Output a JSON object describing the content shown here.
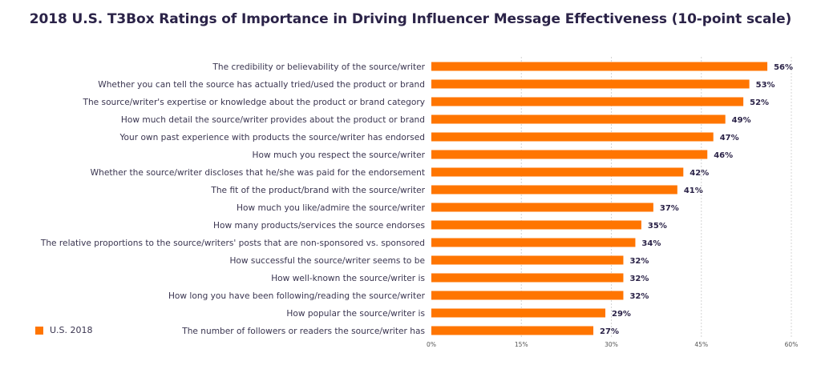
{
  "chart_data": {
    "type": "bar",
    "orientation": "horizontal",
    "title": "2018 U.S. T3Box Ratings of Importance in Driving Influencer Message Effectiveness (10-point scale)",
    "categories": [
      "The credibility or believability of the source/writer",
      "Whether you can tell the source has actually tried/used the product or brand",
      "The source/writer's expertise or knowledge about the product or brand category",
      "How much detail the source/writer provides about the product or brand",
      "Your own past experience with products the source/writer has endorsed",
      "How much you respect the source/writer",
      "Whether the source/writer discloses that he/she was paid for the endorsement",
      "The fit of the product/brand with the source/writer",
      "How much you like/admire the source/writer",
      "How many products/services the source endorses",
      "The relative proportions to the source/writers' posts that are non-sponsored vs. sponsored",
      "How successful the source/writer seems to be",
      "How well-known the source/writer is",
      "How long you have been following/reading the source/writer",
      "How popular the source/writer is",
      "The number of followers or readers the source/writer has"
    ],
    "series": [
      {
        "name": "U.S. 2018",
        "values": [
          56,
          53,
          52,
          49,
          47,
          46,
          42,
          41,
          37,
          35,
          34,
          32,
          32,
          32,
          29,
          27
        ],
        "value_labels": [
          "56%",
          "53%",
          "52%",
          "49%",
          "47%",
          "46%",
          "42%",
          "41%",
          "37%",
          "35%",
          "34%",
          "32%",
          "32%",
          "32%",
          "29%",
          "27%"
        ]
      }
    ],
    "xlim": [
      0,
      60
    ],
    "x_ticks": [
      0,
      15,
      30,
      45,
      60
    ],
    "x_tick_labels": [
      "0%",
      "15%",
      "30%",
      "45%",
      "60%"
    ],
    "grid": true,
    "legend_position": "bottom-left",
    "bar_color": "#ff7500"
  }
}
